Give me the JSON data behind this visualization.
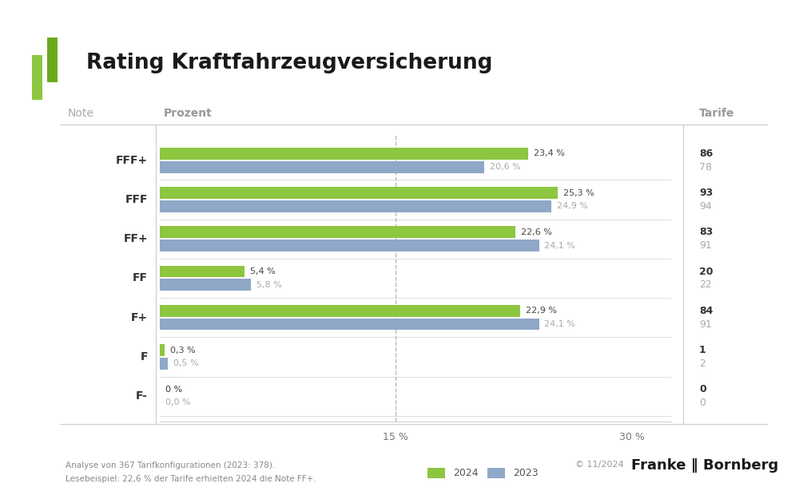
{
  "title": "Rating Kraftfahrzeugversicherung",
  "categories": [
    "FFF+",
    "FFF",
    "FF+",
    "FF",
    "F+",
    "F",
    "F-"
  ],
  "values_2024": [
    23.4,
    25.3,
    22.6,
    5.4,
    22.9,
    0.3,
    0.0
  ],
  "values_2023": [
    20.6,
    24.9,
    24.1,
    5.8,
    24.1,
    0.5,
    0.0
  ],
  "tarife_2024": [
    "86",
    "93",
    "83",
    "20",
    "84",
    "1",
    "0"
  ],
  "tarife_2023": [
    "78",
    "94",
    "91",
    "22",
    "91",
    "2",
    "0"
  ],
  "labels_2024": [
    "23,4 %",
    "25,3 %",
    "22,6 %",
    "5,4 %",
    "22,9 %",
    "0,3 %",
    "0 %"
  ],
  "labels_2023": [
    "20,6 %",
    "24,9 %",
    "24,1 %",
    "5,8 %",
    "24,1 %",
    "0,5 %",
    "0,0 %"
  ],
  "color_2024": "#8dc63f",
  "color_2023": "#8fa8c8",
  "color_white": "#ffffff",
  "color_sep": "#cccccc",
  "color_sep_light": "#e8e8e8",
  "dashed_line_x": 15.0,
  "xmax": 32.5,
  "xticks": [
    15,
    30
  ],
  "xtick_labels": [
    "15 %",
    "30 %"
  ],
  "note_col_label": "Note",
  "prozent_col_label": "Prozent",
  "tarife_col_label": "Tarife",
  "footer_left1": "Analyse von 367 Tarifkonfigurationen (2023: 378).",
  "footer_left2": "Lesebeispiel: 22,6 % der Tarife erhielten 2024 die Note FF+.",
  "footer_right": "© 11/2024",
  "legend_2024": "2024",
  "legend_2023": "2023",
  "brand": "Franke ‖ Bornberg",
  "logo_color1": "#8dc63f",
  "logo_color2": "#6aaa1e"
}
